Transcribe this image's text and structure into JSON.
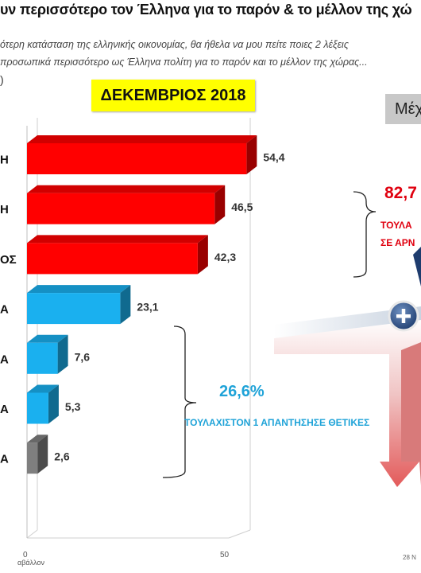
{
  "title": "υν περισσότερο τον Έλληνα για το παρόν & το μέλλον της χώ",
  "subtitle_line1": "ότερη κατάσταση της ελληνικής οικονομίας, θα ήθελα να μου πείτε ποιες 2  λέξεις",
  "subtitle_line2": "προσωπικά περισσότερο ως Έλληνα πολίτη για το παρόν και το μέλλον της χώρας...",
  "paren": ")",
  "period_label": "ΔΕΚΕΜΒΡΙΟΣ 2018",
  "legend_box_label": "Μέχ",
  "negative_group": {
    "percent": "82,7",
    "line1": "ΤΟΥΛΑ",
    "line2": "ΣΕ ΑΡΝ"
  },
  "positive_group": {
    "percent": "26,6%",
    "label": "ΤΟΥΛΑΧΙΣΤΟΝ 1 ΑΠΑΝΤΗΣΗΣΕ ΘΕΤΙΚΕΣ"
  },
  "footer_left": "αβάλλον",
  "footer_right": "28 N",
  "colors": {
    "negative": "#ff0000",
    "positive": "#1ab0ef",
    "neutral": "#7f7f7f"
  },
  "chart_data": {
    "type": "bar",
    "orientation": "horizontal",
    "categories": [
      "Η",
      "Η",
      "ΟΣ",
      "Α",
      "Α",
      "Α",
      "Α"
    ],
    "values": [
      54.4,
      46.5,
      42.3,
      23.1,
      7.6,
      5.3,
      2.6
    ],
    "value_labels": [
      "54,4",
      "46,5",
      "42,3",
      "23,1",
      "7,6",
      "5,3",
      "2,6"
    ],
    "groups": [
      "negative",
      "negative",
      "negative",
      "positive",
      "positive",
      "positive",
      "neutral"
    ],
    "xlim": [
      0,
      50
    ],
    "x_ticks": [
      0,
      50
    ],
    "x_tick_labels": [
      "0",
      "50"
    ],
    "grid": true
  }
}
